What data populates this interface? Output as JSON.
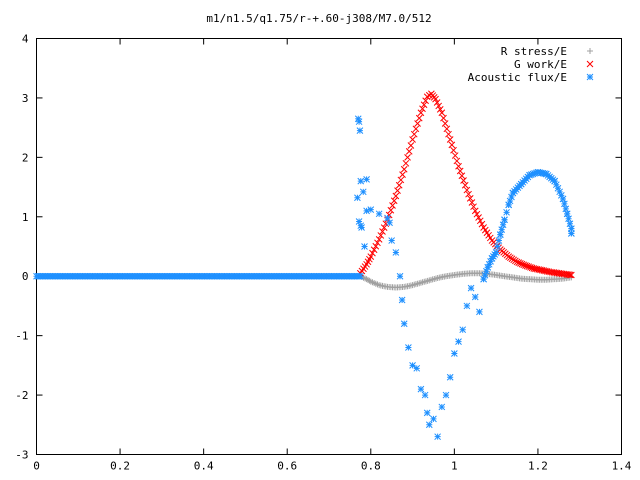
{
  "chart_data": {
    "type": "scatter",
    "title": "m1/n1.5/q1.75/r-+.60-j308/M7.0/512",
    "xlabel": "",
    "ylabel": "",
    "xlim": [
      0,
      1.4
    ],
    "ylim": [
      -3,
      4
    ],
    "x_ticks": [
      "0",
      "0.2",
      "0.4",
      "0.6",
      "0.8",
      "1",
      "1.2",
      "1.4"
    ],
    "y_ticks": [
      "-3",
      "-2",
      "-1",
      "0",
      "1",
      "2",
      "3",
      "4"
    ],
    "grid": false,
    "legend_position": "top-right",
    "series": [
      {
        "name": "R stress/E",
        "marker": "+",
        "color": "#a0a0a0",
        "points": [
          [
            0.775,
            0.0
          ],
          [
            0.79,
            -0.05
          ],
          [
            0.8,
            -0.09
          ],
          [
            0.82,
            -0.15
          ],
          [
            0.84,
            -0.18
          ],
          [
            0.86,
            -0.19
          ],
          [
            0.88,
            -0.18
          ],
          [
            0.9,
            -0.15
          ],
          [
            0.92,
            -0.11
          ],
          [
            0.94,
            -0.07
          ],
          [
            0.96,
            -0.03
          ],
          [
            0.98,
            0.0
          ],
          [
            1.0,
            0.02
          ],
          [
            1.02,
            0.04
          ],
          [
            1.04,
            0.05
          ],
          [
            1.06,
            0.05
          ],
          [
            1.08,
            0.04
          ],
          [
            1.1,
            0.02
          ],
          [
            1.12,
            0.0
          ],
          [
            1.14,
            -0.02
          ],
          [
            1.16,
            -0.04
          ],
          [
            1.18,
            -0.05
          ],
          [
            1.2,
            -0.06
          ],
          [
            1.22,
            -0.06
          ],
          [
            1.24,
            -0.05
          ],
          [
            1.26,
            -0.04
          ],
          [
            1.28,
            -0.02
          ]
        ]
      },
      {
        "name": "G work/E",
        "marker": "x",
        "color": "#ff0000",
        "points": [
          [
            0.775,
            0.05
          ],
          [
            0.79,
            0.2
          ],
          [
            0.8,
            0.33
          ],
          [
            0.82,
            0.62
          ],
          [
            0.84,
            0.95
          ],
          [
            0.86,
            1.35
          ],
          [
            0.88,
            1.8
          ],
          [
            0.9,
            2.3
          ],
          [
            0.92,
            2.75
          ],
          [
            0.935,
            3.02
          ],
          [
            0.945,
            3.07
          ],
          [
            0.955,
            2.98
          ],
          [
            0.97,
            2.75
          ],
          [
            0.99,
            2.3
          ],
          [
            1.01,
            1.85
          ],
          [
            1.03,
            1.45
          ],
          [
            1.05,
            1.1
          ],
          [
            1.07,
            0.82
          ],
          [
            1.09,
            0.6
          ],
          [
            1.11,
            0.45
          ],
          [
            1.13,
            0.33
          ],
          [
            1.15,
            0.24
          ],
          [
            1.17,
            0.18
          ],
          [
            1.19,
            0.13
          ],
          [
            1.21,
            0.1
          ],
          [
            1.23,
            0.07
          ],
          [
            1.25,
            0.05
          ],
          [
            1.27,
            0.03
          ],
          [
            1.28,
            0.02
          ]
        ]
      },
      {
        "name": "Acoustic flux/E",
        "marker": "*",
        "color": "#1e90ff",
        "points": [
          [
            0.0,
            0.0
          ],
          [
            0.1,
            0.0
          ],
          [
            0.2,
            0.0
          ],
          [
            0.3,
            0.0
          ],
          [
            0.4,
            0.0
          ],
          [
            0.5,
            0.0
          ],
          [
            0.6,
            0.0
          ],
          [
            0.7,
            0.0
          ],
          [
            0.775,
            0.0
          ],
          [
            0.77,
            2.65
          ],
          [
            0.772,
            2.6
          ],
          [
            0.774,
            2.45
          ],
          [
            0.768,
            1.32
          ],
          [
            0.776,
            0.85
          ],
          [
            0.778,
            0.82
          ],
          [
            0.772,
            0.92
          ],
          [
            0.776,
            1.6
          ],
          [
            0.79,
            1.63
          ],
          [
            0.782,
            1.42
          ],
          [
            0.785,
            0.5
          ],
          [
            0.79,
            1.1
          ],
          [
            0.8,
            1.12
          ],
          [
            0.82,
            1.05
          ],
          [
            0.84,
            0.98
          ],
          [
            0.845,
            0.9
          ],
          [
            0.85,
            0.6
          ],
          [
            0.86,
            0.4
          ],
          [
            0.87,
            0.0
          ],
          [
            0.875,
            -0.4
          ],
          [
            0.88,
            -0.8
          ],
          [
            0.89,
            -1.2
          ],
          [
            0.9,
            -1.5
          ],
          [
            0.91,
            -1.55
          ],
          [
            0.92,
            -1.9
          ],
          [
            0.93,
            -2.0
          ],
          [
            0.935,
            -2.3
          ],
          [
            0.94,
            -2.5
          ],
          [
            0.95,
            -2.4
          ],
          [
            0.96,
            -2.7
          ],
          [
            0.97,
            -2.2
          ],
          [
            0.98,
            -2.0
          ],
          [
            0.99,
            -1.7
          ],
          [
            1.0,
            -1.3
          ],
          [
            1.01,
            -1.1
          ],
          [
            1.02,
            -0.9
          ],
          [
            1.03,
            -0.5
          ],
          [
            1.04,
            -0.2
          ],
          [
            1.05,
            -0.35
          ],
          [
            1.06,
            -0.6
          ],
          [
            1.07,
            -0.05
          ],
          [
            1.08,
            0.15
          ],
          [
            1.09,
            0.3
          ],
          [
            1.1,
            0.4
          ],
          [
            1.11,
            0.7
          ],
          [
            1.12,
            0.95
          ],
          [
            1.13,
            1.2
          ],
          [
            1.14,
            1.4
          ],
          [
            1.16,
            1.55
          ],
          [
            1.18,
            1.7
          ],
          [
            1.2,
            1.75
          ],
          [
            1.22,
            1.72
          ],
          [
            1.24,
            1.6
          ],
          [
            1.26,
            1.3
          ],
          [
            1.27,
            1.05
          ],
          [
            1.28,
            0.8
          ],
          [
            1.28,
            0.72
          ]
        ]
      }
    ]
  }
}
